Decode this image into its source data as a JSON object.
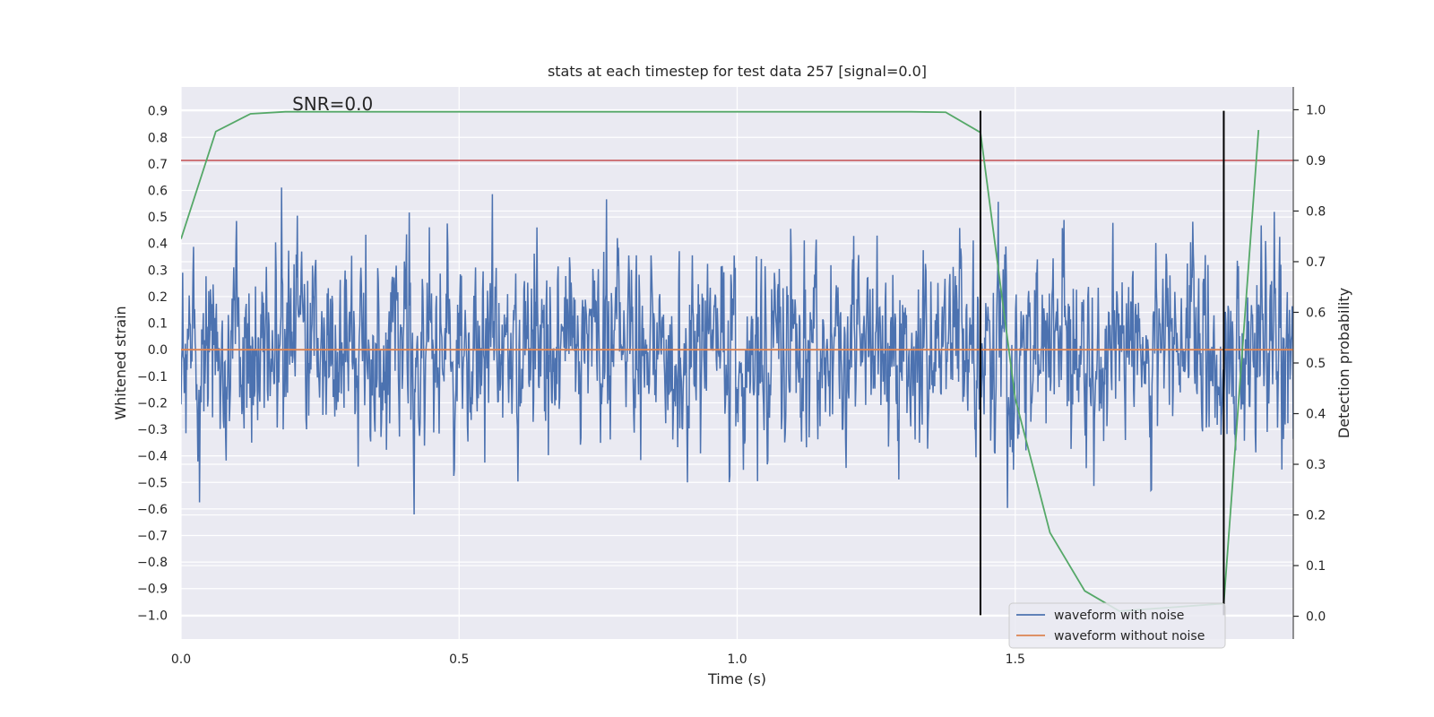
{
  "chart_data": {
    "type": "line",
    "title": "stats at each timestep for test data 257 [signal=0.0]",
    "xlabel": "Time (s)",
    "ylabel": "Whitened strain",
    "y2label": "Detection probability",
    "annotation": "SNR=0.0",
    "xlim": [
      0.0,
      2.0
    ],
    "ylim": [
      -1.09,
      0.99
    ],
    "y2lim": [
      -0.045,
      1.045
    ],
    "xticks": [
      0.0,
      0.5,
      1.0,
      1.5
    ],
    "xtick_labels": [
      "0.0",
      "0.5",
      "1.0",
      "1.5"
    ],
    "yticks": [
      0.9,
      0.8,
      0.7,
      0.6,
      0.5,
      0.4,
      0.3,
      0.2,
      0.1,
      0.0,
      -0.1,
      -0.2,
      -0.3,
      -0.4,
      -0.5,
      -0.6,
      -0.7,
      -0.8,
      -0.9,
      -1.0
    ],
    "ytick_labels": [
      "0.9",
      "0.8",
      "0.7",
      "0.6",
      "0.5",
      "0.4",
      "0.3",
      "0.2",
      "0.1",
      "0.0",
      "−0.1",
      "−0.2",
      "−0.3",
      "−0.4",
      "−0.5",
      "−0.6",
      "−0.7",
      "−0.8",
      "−0.9",
      "−1.0"
    ],
    "y2ticks": [
      1.0,
      0.9,
      0.8,
      0.7,
      0.6,
      0.5,
      0.4,
      0.3,
      0.2,
      0.1,
      0.0
    ],
    "y2tick_labels": [
      "1.0",
      "0.9",
      "0.8",
      "0.7",
      "0.6",
      "0.5",
      "0.4",
      "0.3",
      "0.2",
      "0.1",
      "0.0"
    ],
    "grid": true,
    "legend_position": "lower-right",
    "series": [
      {
        "name": "waveform with noise",
        "color": "#4c72b0",
        "generator": "noise",
        "samples": 2048,
        "amplitude": 0.3,
        "seed": 257,
        "x_range": [
          0.0,
          2.0
        ]
      },
      {
        "name": "waveform without noise",
        "color": "#dd8452",
        "x": [
          0.0,
          2.0
        ],
        "y": [
          0.0,
          0.0
        ]
      }
    ],
    "detection_probability": {
      "name": "detection probability",
      "color": "#55a868",
      "axis": "right",
      "x": [
        0.0,
        0.0625,
        0.125,
        0.1875,
        1.3125,
        1.375,
        1.4375,
        1.5,
        1.5625,
        1.625,
        1.6875,
        1.875,
        1.9375
      ],
      "y": [
        0.745,
        0.957,
        0.992,
        0.996,
        0.996,
        0.995,
        0.955,
        0.43,
        0.165,
        0.05,
        0.01,
        0.025,
        0.96
      ]
    },
    "threshold": {
      "axis": "right",
      "value": 0.9,
      "color": "#c44e52"
    },
    "vlines": [
      {
        "x": 1.4375,
        "ymin": -1.0,
        "ymax": 0.9,
        "color": "#000000"
      },
      {
        "x": 1.875,
        "ymin": -1.0,
        "ymax": 0.9,
        "color": "#000000"
      }
    ]
  },
  "colors": {
    "plot_background": "#eaeaf2",
    "grid": "#ffffff",
    "text": "#262626",
    "legend_background": "#eaeaf2",
    "legend_border": "#cccccc"
  }
}
